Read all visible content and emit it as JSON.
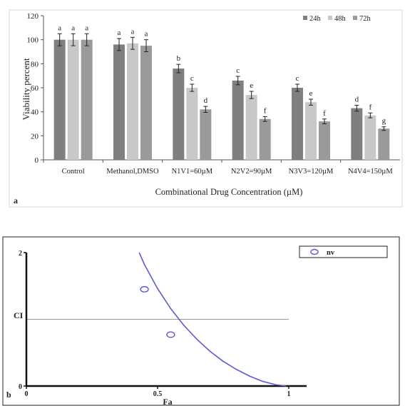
{
  "chart_data": [
    {
      "panel_label": "a",
      "type": "bar",
      "title": "",
      "xlabel": "Combinational Drug Concentration (µM)",
      "ylabel": "Viability percent",
      "ylim": [
        0,
        120
      ],
      "yticks": [
        0,
        20,
        40,
        60,
        80,
        100,
        120
      ],
      "grid": false,
      "legend": "top-right",
      "categories": [
        "Control",
        "Methanol,DMSO",
        "N1V1=60µM",
        "N2V2=90µM",
        "N3V3=120µM",
        "N4V4=150µM"
      ],
      "series": [
        {
          "name": "24h",
          "color": "#7f7f7f",
          "values": [
            100,
            96,
            76,
            66,
            60,
            43
          ],
          "errors": [
            5,
            5,
            3.5,
            3.5,
            3,
            2.5
          ],
          "letters": [
            "a",
            "a",
            "b",
            "c",
            "c",
            "d"
          ]
        },
        {
          "name": "48h",
          "color": "#c8c8c8",
          "values": [
            100,
            97,
            60,
            54,
            48,
            37
          ],
          "errors": [
            5,
            5,
            3,
            3,
            2.5,
            2
          ],
          "letters": [
            "a",
            "a",
            "c",
            "e",
            "e",
            "f"
          ]
        },
        {
          "name": "72h",
          "color": "#9a9a9a",
          "values": [
            100,
            95,
            42,
            34,
            32,
            26
          ],
          "errors": [
            5,
            5,
            2.5,
            2,
            2,
            1.5
          ],
          "letters": [
            "a",
            "a",
            "d",
            "f",
            "f",
            "g"
          ]
        }
      ]
    },
    {
      "panel_label": "b",
      "type": "line",
      "title": "",
      "xlabel": "Fa",
      "ylabel": "CI",
      "xlim": [
        0,
        1
      ],
      "ylim": [
        0,
        2
      ],
      "xticks": [
        "0",
        "0.5",
        "1"
      ],
      "yticks": [
        "0",
        "2"
      ],
      "reference_line": 1,
      "legend": "top-right",
      "series": [
        {
          "name": "nv",
          "color": "#5b5bd6",
          "curve": {
            "x": [
              0.43,
              0.45,
              0.5,
              0.55,
              0.6,
              0.65,
              0.7,
              0.75,
              0.8,
              0.85,
              0.9,
              0.95,
              0.99
            ],
            "y": [
              2.0,
              1.82,
              1.46,
              1.16,
              0.91,
              0.7,
              0.52,
              0.37,
              0.25,
              0.15,
              0.07,
              0.02,
              0.0
            ]
          },
          "points": {
            "x": [
              0.45,
              0.55
            ],
            "y": [
              1.45,
              0.77
            ]
          }
        }
      ]
    }
  ]
}
